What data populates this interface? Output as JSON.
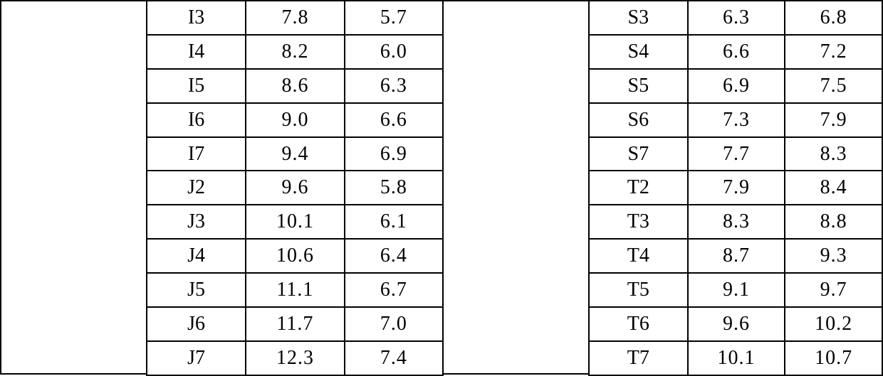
{
  "left_table": {
    "rows": [
      {
        "label": "I3",
        "v1": "7.8",
        "v2": "5.7"
      },
      {
        "label": "I4",
        "v1": "8.2",
        "v2": "6.0"
      },
      {
        "label": "I5",
        "v1": "8.6",
        "v2": "6.3"
      },
      {
        "label": "I6",
        "v1": "9.0",
        "v2": "6.6"
      },
      {
        "label": "I7",
        "v1": "9.4",
        "v2": "6.9"
      },
      {
        "label": "J2",
        "v1": "9.6",
        "v2": "5.8"
      },
      {
        "label": "J3",
        "v1": "10.1",
        "v2": "6.1"
      },
      {
        "label": "J4",
        "v1": "10.6",
        "v2": "6.4"
      },
      {
        "label": "J5",
        "v1": "11.1",
        "v2": "6.7"
      },
      {
        "label": "J6",
        "v1": "11.7",
        "v2": "7.0"
      },
      {
        "label": "J7",
        "v1": "12.3",
        "v2": "7.4"
      }
    ]
  },
  "right_table": {
    "rows": [
      {
        "label": "S3",
        "v1": "6.3",
        "v2": "6.8"
      },
      {
        "label": "S4",
        "v1": "6.6",
        "v2": "7.2"
      },
      {
        "label": "S5",
        "v1": "6.9",
        "v2": "7.5"
      },
      {
        "label": "S6",
        "v1": "7.3",
        "v2": "7.9"
      },
      {
        "label": "S7",
        "v1": "7.7",
        "v2": "8.3"
      },
      {
        "label": "T2",
        "v1": "7.9",
        "v2": "8.4"
      },
      {
        "label": "T3",
        "v1": "8.3",
        "v2": "8.8"
      },
      {
        "label": "T4",
        "v1": "8.7",
        "v2": "9.3"
      },
      {
        "label": "T5",
        "v1": "9.1",
        "v2": "9.7"
      },
      {
        "label": "T6",
        "v1": "9.6",
        "v2": "10.2"
      },
      {
        "label": "T7",
        "v1": "10.1",
        "v2": "10.7"
      }
    ]
  },
  "style": {
    "font_size": 28,
    "border_color": "#000000",
    "background_color": "#ffffff",
    "text_color": "#000000"
  }
}
